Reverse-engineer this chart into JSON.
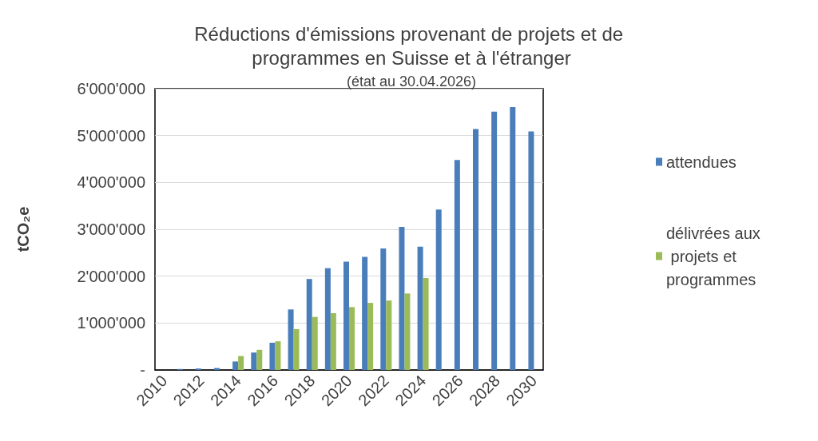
{
  "chart_data": {
    "type": "bar",
    "title": "Réductions d'émissions provenant de projets et de programmes en Suisse et à l'étranger",
    "subtitle": "(état au 30.04.2026)",
    "ylabel": "tCO₂e",
    "categories": [
      "2010",
      null,
      "2012",
      null,
      "2014",
      null,
      "2016",
      null,
      "2018",
      null,
      "2020",
      null,
      "2022",
      null,
      "2024",
      null,
      "2026",
      null,
      "2028",
      null,
      "2030"
    ],
    "series": [
      {
        "name": "attendues",
        "color": "#4a7ebb",
        "values": [
          null,
          20000,
          30000,
          40000,
          180000,
          370000,
          580000,
          1290000,
          1940000,
          2170000,
          2310000,
          2410000,
          2590000,
          3050000,
          2630000,
          3420000,
          4480000,
          5140000,
          5510000,
          5610000,
          5090000
        ]
      },
      {
        "name": "délivrées aux projets et programmes",
        "color": "#9bbb59",
        "values": [
          null,
          null,
          null,
          null,
          295000,
          430000,
          610000,
          870000,
          1130000,
          1210000,
          1340000,
          1430000,
          1480000,
          1630000,
          1960000,
          null,
          null,
          null,
          null,
          null,
          null
        ]
      }
    ],
    "ylim": [
      0,
      6000000
    ],
    "yticks": [
      {
        "value": 0,
        "label": "-"
      },
      {
        "value": 1000000,
        "label": "1'000'000"
      },
      {
        "value": 2000000,
        "label": "2'000'000"
      },
      {
        "value": 3000000,
        "label": "3'000'000"
      },
      {
        "value": 4000000,
        "label": "4'000'000"
      },
      {
        "value": 5000000,
        "label": "5'000'000"
      },
      {
        "value": 6000000,
        "label": "6'000'000"
      }
    ],
    "grid": "y",
    "legend": "right"
  }
}
